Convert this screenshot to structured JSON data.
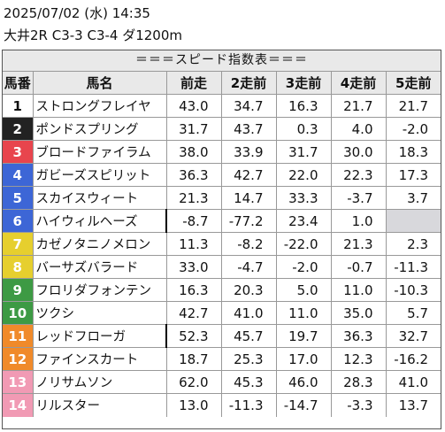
{
  "header": {
    "date_line": "2025/07/02 (水) 14:35",
    "race_line": "大井2R C3-3 C3-4 ダ1200m"
  },
  "banner": "＝＝＝スピード指数表＝＝＝",
  "columns": [
    "馬番",
    "馬名",
    "前走",
    "2走前",
    "3走前",
    "4走前",
    "5走前"
  ],
  "frame_colors": {
    "1": {
      "bg": "#ffffff",
      "fg": "#111111"
    },
    "2": {
      "bg": "#222222",
      "fg": "#ffffff"
    },
    "3": {
      "bg": "#e8454d",
      "fg": "#ffffff"
    },
    "4": {
      "bg": "#3d66d6",
      "fg": "#ffffff"
    },
    "5": {
      "bg": "#e6cf2e",
      "fg": "#ffffff"
    },
    "6": {
      "bg": "#3d9a44",
      "fg": "#ffffff"
    },
    "7": {
      "bg": "#f08a2a",
      "fg": "#ffffff"
    },
    "8": {
      "bg": "#f19ab4",
      "fg": "#ffffff"
    }
  },
  "rows": [
    {
      "num": "1",
      "frame": 1,
      "name": "ストロングフレイヤ",
      "v": [
        "43.0",
        "34.7",
        "16.3",
        "21.7",
        "21.7"
      ]
    },
    {
      "num": "2",
      "frame": 2,
      "name": "ポンドスプリング",
      "v": [
        "31.7",
        "43.7",
        "0.3",
        "4.0",
        "-2.0"
      ]
    },
    {
      "num": "3",
      "frame": 3,
      "name": "ブロードファイラム",
      "v": [
        "38.0",
        "33.9",
        "31.7",
        "30.0",
        "18.3"
      ]
    },
    {
      "num": "4",
      "frame": 4,
      "name": "ガビーズスピリット",
      "v": [
        "36.3",
        "42.7",
        "22.0",
        "22.3",
        "17.3"
      ]
    },
    {
      "num": "5",
      "frame": 4,
      "name": "スカイスウィート",
      "v": [
        "21.3",
        "14.7",
        "33.3",
        "-3.7",
        "3.7"
      ]
    },
    {
      "num": "6",
      "frame": 4,
      "name": "ハイウィルヘーズ",
      "mark": true,
      "v": [
        "-8.7",
        "-77.2",
        "23.4",
        "1.0",
        ""
      ]
    },
    {
      "num": "7",
      "frame": 5,
      "name": "カゼノタニノメロン",
      "v": [
        "11.3",
        "-8.2",
        "-22.0",
        "21.3",
        "2.3"
      ]
    },
    {
      "num": "8",
      "frame": 5,
      "name": "バーサズバラード",
      "v": [
        "33.0",
        "-4.7",
        "-2.0",
        "-0.7",
        "-11.3"
      ]
    },
    {
      "num": "9",
      "frame": 6,
      "name": "フロリダフォンテン",
      "v": [
        "16.3",
        "20.3",
        "5.0",
        "11.0",
        "-10.3"
      ]
    },
    {
      "num": "10",
      "frame": 6,
      "name": "ツクシ",
      "v": [
        "42.7",
        "41.0",
        "11.0",
        "35.0",
        "5.7"
      ]
    },
    {
      "num": "11",
      "frame": 7,
      "name": "レッドフローガ",
      "mark": true,
      "v": [
        "52.3",
        "45.7",
        "19.7",
        "36.3",
        "32.7"
      ]
    },
    {
      "num": "12",
      "frame": 7,
      "name": "ファインスカート",
      "v": [
        "18.7",
        "25.3",
        "17.0",
        "12.3",
        "-16.2"
      ]
    },
    {
      "num": "13",
      "frame": 8,
      "name": "ノリサムソン",
      "v": [
        "62.0",
        "45.3",
        "46.0",
        "28.3",
        "41.0"
      ]
    },
    {
      "num": "14",
      "frame": 8,
      "name": "リルスター",
      "v": [
        "13.0",
        "-11.3",
        "-14.7",
        "-3.3",
        "13.7"
      ]
    }
  ]
}
